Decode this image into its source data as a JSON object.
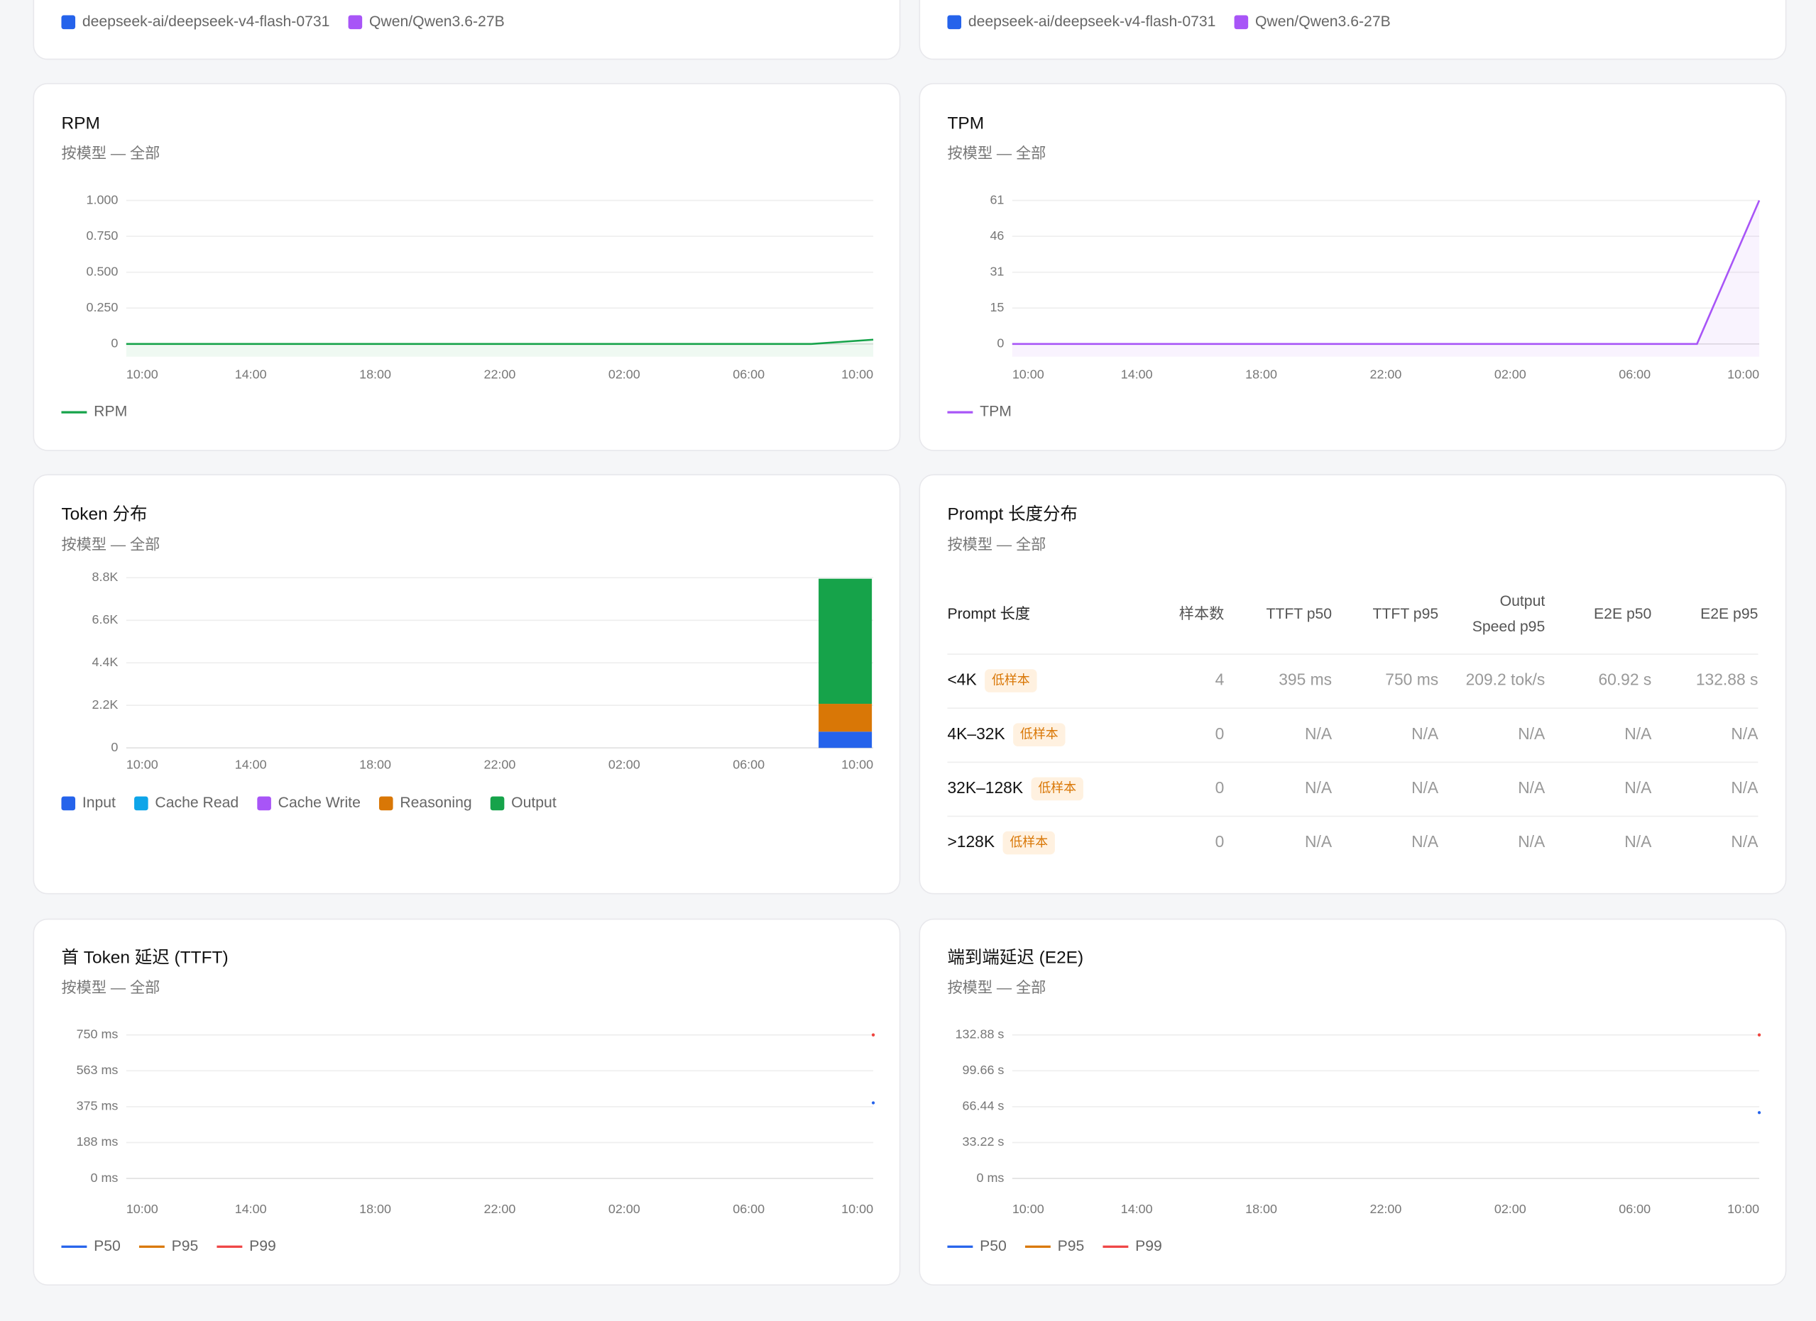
{
  "top_legends": [
    {
      "name": "deepseek-ai/deepseek-v4-flash-0731",
      "color": "#2563eb"
    },
    {
      "name": "Qwen/Qwen3.6-27B",
      "color": "#a855f7"
    }
  ],
  "chart_data": [
    {
      "type": "line",
      "title": "RPM",
      "subtitle": "按模型 — 全部",
      "x": [
        0,
        22,
        24
      ],
      "series": [
        {
          "name": "RPM",
          "color": "#16a34a",
          "values": [
            0,
            0,
            0.03
          ]
        }
      ],
      "xlim": [
        0,
        24
      ],
      "xticks": [
        {
          "value": 0,
          "label": "10:00"
        },
        {
          "value": 4,
          "label": "14:00"
        },
        {
          "value": 8,
          "label": "18:00"
        },
        {
          "value": 12,
          "label": "22:00"
        },
        {
          "value": 16,
          "label": "02:00"
        },
        {
          "value": 20,
          "label": "06:00"
        },
        {
          "value": 24,
          "label": "10:00"
        }
      ],
      "ylim": [
        0,
        1
      ],
      "yticks": [
        0,
        {
          "value": 0.25,
          "label": "0.250"
        },
        {
          "value": 0.5,
          "label": "0.500"
        },
        {
          "value": 0.75,
          "label": "0.750"
        },
        {
          "value": 1,
          "label": "1.000"
        }
      ],
      "grid": true,
      "area": true
    },
    {
      "type": "line",
      "title": "TPM",
      "subtitle": "按模型 — 全部",
      "x": [
        0,
        22,
        24
      ],
      "series": [
        {
          "name": "TPM",
          "color": "#a855f7",
          "values": [
            0,
            0,
            61
          ]
        }
      ],
      "xlim": [
        0,
        24
      ],
      "xticks": [
        {
          "value": 0,
          "label": "10:00"
        },
        {
          "value": 4,
          "label": "14:00"
        },
        {
          "value": 8,
          "label": "18:00"
        },
        {
          "value": 12,
          "label": "22:00"
        },
        {
          "value": 16,
          "label": "02:00"
        },
        {
          "value": 20,
          "label": "06:00"
        },
        {
          "value": 24,
          "label": "10:00"
        }
      ],
      "ylim": [
        0,
        61
      ],
      "yticks": [
        0,
        {
          "value": 15.25,
          "label": "15"
        },
        {
          "value": 30.5,
          "label": "31"
        },
        {
          "value": 45.75,
          "label": "46"
        },
        61
      ],
      "grid": true,
      "area": true
    },
    {
      "type": "bar",
      "stacked": true,
      "title": "Token 分布",
      "subtitle": "按模型 — 全部",
      "x": [
        23.1
      ],
      "series": [
        {
          "name": "Input",
          "color": "#2563eb",
          "values": [
            840
          ]
        },
        {
          "name": "Cache Read",
          "color": "#0ea5e9",
          "values": [
            0
          ]
        },
        {
          "name": "Cache Write",
          "color": "#a855f7",
          "values": [
            0
          ]
        },
        {
          "name": "Reasoning",
          "color": "#d97706",
          "values": [
            1440
          ]
        },
        {
          "name": "Output",
          "color": "#16a34a",
          "values": [
            6470
          ]
        }
      ],
      "xlim": [
        0,
        24
      ],
      "xticks": [
        {
          "value": 0,
          "label": "10:00"
        },
        {
          "value": 4,
          "label": "14:00"
        },
        {
          "value": 8,
          "label": "18:00"
        },
        {
          "value": 12,
          "label": "22:00"
        },
        {
          "value": 16,
          "label": "02:00"
        },
        {
          "value": 20,
          "label": "06:00"
        },
        {
          "value": 24,
          "label": "10:00"
        }
      ],
      "ylim": [
        0,
        8800
      ],
      "yticks": [
        0,
        {
          "value": 2200,
          "label": "2.2K"
        },
        {
          "value": 4400,
          "label": "4.4K"
        },
        {
          "value": 6600,
          "label": "6.6K"
        },
        {
          "value": 8800,
          "label": "8.8K"
        }
      ],
      "grid": true
    },
    {
      "type": "line",
      "title": "首 Token 延迟 (TTFT)",
      "subtitle": "按模型 — 全部",
      "x": [
        24
      ],
      "series": [
        {
          "name": "P50",
          "color": "#2563eb",
          "values": [
            395
          ]
        },
        {
          "name": "P95",
          "color": "#d97706",
          "values": [
            750
          ]
        },
        {
          "name": "P99",
          "color": "#ef4444",
          "values": [
            750
          ]
        }
      ],
      "xlim": [
        0,
        24
      ],
      "xticks": [
        {
          "value": 0,
          "label": "10:00"
        },
        {
          "value": 4,
          "label": "14:00"
        },
        {
          "value": 8,
          "label": "18:00"
        },
        {
          "value": 12,
          "label": "22:00"
        },
        {
          "value": 16,
          "label": "02:00"
        },
        {
          "value": 20,
          "label": "06:00"
        },
        {
          "value": 24,
          "label": "10:00"
        }
      ],
      "ylim": [
        0,
        750
      ],
      "yticks": [
        {
          "value": 0,
          "label": "0 ms"
        },
        {
          "value": 187.5,
          "label": "188 ms"
        },
        {
          "value": 375,
          "label": "375 ms"
        },
        {
          "value": 562.5,
          "label": "563 ms"
        },
        {
          "value": 750,
          "label": "750 ms"
        }
      ],
      "grid": true
    },
    {
      "type": "line",
      "title": "端到端延迟 (E2E)",
      "subtitle": "按模型 — 全部",
      "x": [
        24
      ],
      "series": [
        {
          "name": "P50",
          "color": "#2563eb",
          "values": [
            60.92
          ]
        },
        {
          "name": "P95",
          "color": "#d97706",
          "values": [
            132.88
          ]
        },
        {
          "name": "P99",
          "color": "#ef4444",
          "values": [
            132.88
          ]
        }
      ],
      "xlim": [
        0,
        24
      ],
      "xticks": [
        {
          "value": 0,
          "label": "10:00"
        },
        {
          "value": 4,
          "label": "14:00"
        },
        {
          "value": 8,
          "label": "18:00"
        },
        {
          "value": 12,
          "label": "22:00"
        },
        {
          "value": 16,
          "label": "02:00"
        },
        {
          "value": 20,
          "label": "06:00"
        },
        {
          "value": 24,
          "label": "10:00"
        }
      ],
      "ylim": [
        0,
        132.88
      ],
      "yticks": [
        {
          "value": 0,
          "label": "0 ms"
        },
        {
          "value": 33.22,
          "label": "33.22 s"
        },
        {
          "value": 66.44,
          "label": "66.44 s"
        },
        {
          "value": 99.66,
          "label": "99.66 s"
        },
        {
          "value": 132.88,
          "label": "132.88 s"
        }
      ],
      "grid": true
    }
  ],
  "prompt_table": {
    "title": "Prompt 长度分布",
    "subtitle": "按模型 — 全部",
    "headers": [
      [
        "Prompt 长度"
      ],
      [
        "样本数"
      ],
      [
        "TTFT p50"
      ],
      [
        "TTFT p95"
      ],
      [
        "Output",
        "Speed p95"
      ],
      [
        "E2E p50"
      ],
      [
        "E2E p95"
      ]
    ],
    "rows": [
      {
        "label": "<4K",
        "badge": "低样本",
        "cells": [
          "4",
          "395 ms",
          "750 ms",
          "209.2 tok/s",
          "60.92 s",
          "132.88 s"
        ]
      },
      {
        "label": "4K–32K",
        "badge": "低样本",
        "cells": [
          "0",
          "N/A",
          "N/A",
          "N/A",
          "N/A",
          "N/A"
        ]
      },
      {
        "label": "32K–128K",
        "badge": "低样本",
        "cells": [
          "0",
          "N/A",
          "N/A",
          "N/A",
          "N/A",
          "N/A"
        ]
      },
      {
        "label": ">128K",
        "badge": "低样本",
        "cells": [
          "0",
          "N/A",
          "N/A",
          "N/A",
          "N/A",
          "N/A"
        ]
      }
    ]
  }
}
